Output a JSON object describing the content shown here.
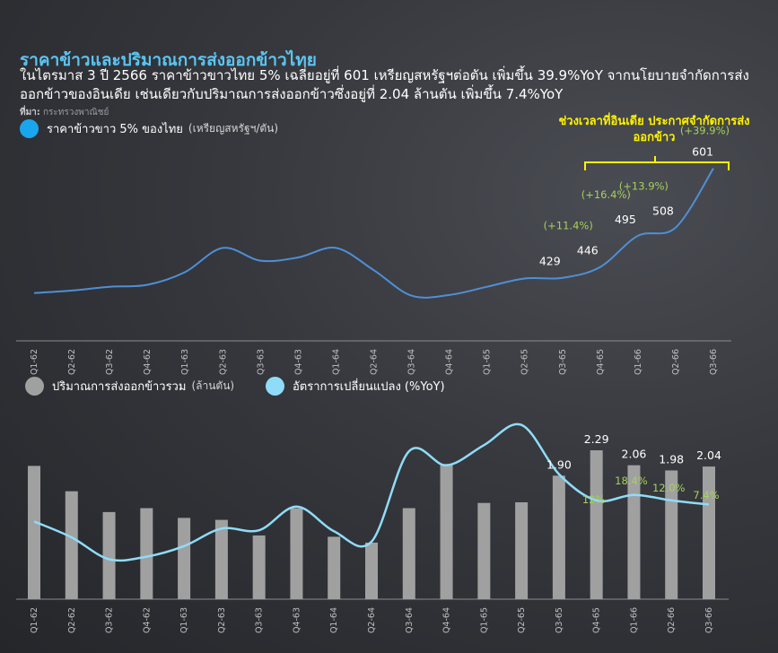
{
  "title": "ราคาข้าวและปริมาณการส่งออกข้าวไทย",
  "subtitle": "ในไตรมาส 3 ปี 2566 ราคาข้าวขาวไทย 5% เฉลี่ยอยู่ที่ 601 เหรียญสหรัฐฯต่อตัน เพิ่มขึ้น 39.9%YoY จากนโยบายจำกัดการส่งออกข้าวของอินเดีย เช่นเดียวกับปริมาณการส่งออกข้าวซึ่งอยู่ที่ 2.04 ล้านตัน เพิ่มขึ้น 7.4%YoY",
  "source_label": "ที่มา:",
  "source_text": "กระทรวงพาณิชย์",
  "bracket_label": "ช่วงเวลาที่อินเดีย ประกาศจำกัดการส่งออกข้าว",
  "colors": {
    "price_line": "#4f8fd6",
    "price_dot": "#1aa6ee",
    "bars": "#a0a0a0",
    "yoy_line": "#8fdcf8",
    "highlight": "#fff200",
    "pct_label": "#a6d15a"
  },
  "chart_data": [
    {
      "type": "line",
      "legend": {
        "label": "ราคาข้าวขาว 5% ของไทย",
        "unit": "(เหรียญสหรัฐฯ/ตัน)"
      },
      "categories": [
        "Q1-62",
        "Q2-62",
        "Q3-62",
        "Q4-62",
        "Q1-63",
        "Q2-63",
        "Q3-63",
        "Q4-63",
        "Q1-64",
        "Q2-64",
        "Q3-64",
        "Q4-64",
        "Q1-65",
        "Q2-65",
        "Q3-65",
        "Q4-65",
        "Q1-66",
        "Q2-66",
        "Q3-66"
      ],
      "values": [
        405,
        409,
        415,
        418,
        438,
        476,
        456,
        461,
        476,
        441,
        401,
        402,
        415,
        428,
        429,
        446,
        495,
        508,
        601
      ],
      "labels": [
        {
          "category": "Q3-65",
          "value": "429"
        },
        {
          "category": "Q4-65",
          "value": "446",
          "change": "(+11.4%)"
        },
        {
          "category": "Q1-66",
          "value": "495",
          "change": "(+16.4%)"
        },
        {
          "category": "Q2-66",
          "value": "508",
          "change": "(+13.9%)"
        },
        {
          "category": "Q3-66",
          "value": "601",
          "change": "(+39.9%)"
        }
      ],
      "ylim": [
        330,
        640
      ]
    },
    {
      "type": "bar",
      "legend": [
        {
          "label": "ปริมาณการส่งออกข้าวรวม",
          "unit": "(ล้านตัน)"
        },
        {
          "label": "อัตราการเปลี่ยนแปลง (%YoY)"
        }
      ],
      "categories": [
        "Q1-62",
        "Q2-62",
        "Q3-62",
        "Q4-62",
        "Q1-63",
        "Q2-63",
        "Q3-63",
        "Q4-63",
        "Q1-64",
        "Q2-64",
        "Q3-64",
        "Q4-64",
        "Q1-65",
        "Q2-65",
        "Q3-65",
        "Q4-65",
        "Q1-66",
        "Q2-66",
        "Q3-66"
      ],
      "series": [
        {
          "values": [
            2.05,
            1.66,
            1.34,
            1.4,
            1.25,
            1.22,
            0.98,
            1.4,
            0.96,
            0.87,
            1.4,
            2.08,
            1.48,
            1.49,
            1.9,
            2.29,
            2.06,
            1.98,
            2.04
          ]
        },
        {
          "values": [
            -12,
            -30,
            -55,
            -52,
            -40,
            -20,
            -22,
            5,
            -23,
            -35,
            68,
            52,
            75,
            98,
            42,
            12,
            18.4,
            12.0,
            7.4
          ]
        }
      ],
      "value_labels": [
        {
          "category": "Q3-65",
          "value": "1.90"
        },
        {
          "category": "Q4-65",
          "value": "2.29",
          "change": "12%"
        },
        {
          "category": "Q1-66",
          "value": "2.06",
          "change": "18.4%"
        },
        {
          "category": "Q2-66",
          "value": "1.98",
          "change": "12.0%"
        },
        {
          "category": "Q3-66",
          "value": "2.04",
          "change": "7.4%"
        }
      ],
      "ylim": [
        0,
        2.5
      ],
      "y2lim": [
        -80,
        110
      ]
    }
  ]
}
